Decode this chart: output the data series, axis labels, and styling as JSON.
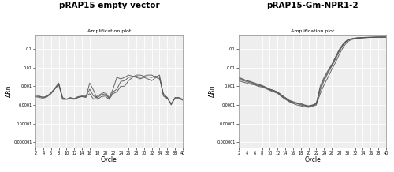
{
  "left_title": "pRAP15 empty vector",
  "right_title": "pRAP15-Gm-NPR1-2",
  "subplot_title": "Amplification plot",
  "xlabel": "Cycle",
  "ylabel": "ΔRn",
  "xlim": [
    2,
    40
  ],
  "yticks": [
    0.1,
    0.01,
    0.001,
    0.0001,
    1e-05,
    1e-06
  ],
  "ytick_labels": [
    "0.1",
    "0.01",
    "0.001",
    "0.0001",
    "0.00001",
    "0.000001"
  ],
  "xticks": [
    2,
    4,
    6,
    8,
    10,
    12,
    14,
    16,
    18,
    20,
    22,
    24,
    26,
    28,
    30,
    32,
    34,
    36,
    38,
    40
  ],
  "line_color": "#555555",
  "bg_color": "#eeeeee",
  "grid_color": "#ffffff",
  "left_lines_x": [
    2,
    3,
    4,
    5,
    6,
    7,
    8,
    9,
    10,
    11,
    12,
    13,
    14,
    15,
    16,
    17,
    18,
    19,
    20,
    21,
    22,
    23,
    24,
    25,
    26,
    27,
    28,
    29,
    30,
    31,
    32,
    33,
    34,
    35,
    36,
    37,
    38,
    39,
    40
  ],
  "left_lines_y": [
    [
      0.00035,
      0.0003,
      0.00025,
      0.0003,
      0.00045,
      0.0008,
      0.0015,
      0.00025,
      0.0002,
      0.00025,
      0.00022,
      0.00028,
      0.0003,
      0.0003,
      0.0004,
      0.0002,
      0.0003,
      0.0004,
      0.0005,
      0.00025,
      0.0007,
      0.003,
      0.0025,
      0.003,
      0.004,
      0.0035,
      0.003,
      0.0025,
      0.003,
      0.0025,
      0.002,
      0.003,
      0.0025,
      0.0004,
      0.00025,
      0.0001,
      0.00025,
      0.00025,
      0.0002
    ],
    [
      0.00028,
      0.00025,
      0.00023,
      0.00027,
      0.0004,
      0.0007,
      0.0012,
      0.0002,
      0.0002,
      0.00022,
      0.0002,
      0.00025,
      0.00028,
      0.00025,
      0.0015,
      0.0006,
      0.0002,
      0.00028,
      0.0003,
      0.0002,
      0.0004,
      0.0005,
      0.001,
      0.001,
      0.002,
      0.003,
      0.004,
      0.004,
      0.0035,
      0.004,
      0.004,
      0.003,
      0.004,
      0.0003,
      0.00022,
      0.00012,
      0.00022,
      0.00022,
      0.00018
    ],
    [
      0.0003,
      0.00028,
      0.00026,
      0.0003,
      0.00042,
      0.00075,
      0.0013,
      0.00023,
      0.00021,
      0.00024,
      0.00021,
      0.00026,
      0.00029,
      0.00027,
      0.0007,
      0.0003,
      0.00025,
      0.00035,
      0.0004,
      0.00022,
      0.0005,
      0.0007,
      0.0018,
      0.002,
      0.003,
      0.0032,
      0.0035,
      0.003,
      0.0032,
      0.0032,
      0.003,
      0.0035,
      0.003,
      0.00035,
      0.00024,
      0.00011,
      0.00024,
      0.00024,
      0.00019
    ]
  ],
  "right_lines_x": [
    2,
    3,
    4,
    5,
    6,
    7,
    8,
    9,
    10,
    11,
    12,
    13,
    14,
    15,
    16,
    17,
    18,
    19,
    20,
    21,
    22,
    23,
    24,
    25,
    26,
    27,
    28,
    29,
    30,
    31,
    32,
    33,
    34,
    35,
    36,
    37,
    38,
    39,
    40
  ],
  "right_lines_y": [
    [
      0.003,
      0.0025,
      0.002,
      0.0018,
      0.0015,
      0.0013,
      0.0011,
      0.0009,
      0.0007,
      0.0006,
      0.0005,
      0.00035,
      0.00025,
      0.00018,
      0.00015,
      0.00013,
      0.00012,
      0.0001,
      9e-05,
      0.0001,
      0.00012,
      0.001,
      0.003,
      0.007,
      0.015,
      0.04,
      0.1,
      0.2,
      0.3,
      0.35,
      0.38,
      0.4,
      0.41,
      0.42,
      0.42,
      0.43,
      0.43,
      0.43,
      0.43
    ],
    [
      0.0025,
      0.002,
      0.0018,
      0.0015,
      0.0013,
      0.0011,
      0.001,
      0.0008,
      0.00065,
      0.00055,
      0.00045,
      0.0003,
      0.00022,
      0.00016,
      0.00013,
      0.00012,
      0.0001,
      9e-05,
      8e-05,
      9.5e-05,
      0.00011,
      0.0006,
      0.002,
      0.005,
      0.012,
      0.03,
      0.08,
      0.17,
      0.28,
      0.34,
      0.37,
      0.39,
      0.4,
      0.41,
      0.42,
      0.42,
      0.43,
      0.43,
      0.43
    ],
    [
      0.002,
      0.0017,
      0.0015,
      0.0013,
      0.0012,
      0.001,
      0.0009,
      0.00075,
      0.0006,
      0.0005,
      0.00042,
      0.00028,
      0.0002,
      0.00015,
      0.00012,
      0.0001,
      9e-05,
      8e-05,
      7.5e-05,
      8.5e-05,
      0.0001,
      0.0004,
      0.0012,
      0.003,
      0.008,
      0.02,
      0.055,
      0.13,
      0.24,
      0.31,
      0.35,
      0.37,
      0.39,
      0.4,
      0.41,
      0.42,
      0.42,
      0.43,
      0.43
    ],
    [
      0.0028,
      0.0023,
      0.002,
      0.0017,
      0.0014,
      0.0012,
      0.00105,
      0.00085,
      0.0007,
      0.0006,
      0.0005,
      0.00032,
      0.00024,
      0.00017,
      0.00014,
      0.00012,
      0.00011,
      9.5e-05,
      8.5e-05,
      9.5e-05,
      0.00012,
      0.0008,
      0.0025,
      0.006,
      0.013,
      0.035,
      0.09,
      0.18,
      0.29,
      0.34,
      0.38,
      0.39,
      0.4,
      0.41,
      0.42,
      0.42,
      0.43,
      0.43,
      0.43
    ]
  ]
}
